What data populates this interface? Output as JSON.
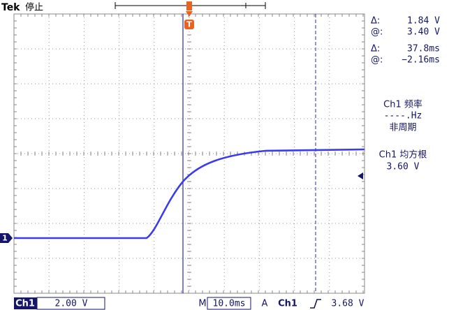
{
  "header": {
    "brand": "Tek",
    "status": "停止"
  },
  "trigger_marker": "T",
  "cursor_readouts": [
    {
      "symbol": "Δ:",
      "value": "1.84 V"
    },
    {
      "symbol": "@:",
      "value": "3.40 V"
    },
    {
      "symbol": "Δ:",
      "value": "37.8ms"
    },
    {
      "symbol": "@:",
      "value": "−2.16ms"
    }
  ],
  "measurements": [
    {
      "label": "Ch1 频率",
      "value": "----.Hz",
      "note": "非周期"
    },
    {
      "label": "Ch1 均方根",
      "value": "3.60 V"
    }
  ],
  "channel_marker": "1",
  "footer": {
    "channel": "Ch1",
    "scale": "2.00 V",
    "time_prefix": "M",
    "time_scale": "10.0ms",
    "trigger_prefix": "A",
    "trigger_source": "Ch1",
    "trigger_level": "3.68 V"
  }
}
